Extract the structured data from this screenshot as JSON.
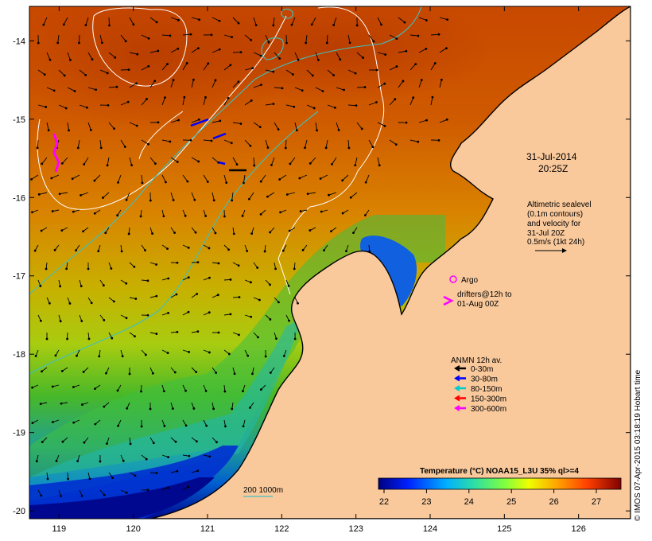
{
  "map": {
    "date": "31-Jul-2014",
    "time": "20:25Z",
    "lon_ticks": [
      "119",
      "120",
      "121",
      "122",
      "123",
      "124",
      "125",
      "126"
    ],
    "lat_ticks": [
      "-14",
      "-15",
      "-16",
      "-17",
      "-18",
      "-19",
      "-20"
    ]
  },
  "altimetry_note": {
    "line1": "Altimetric sealevel",
    "line2": "(0.1m contours)",
    "line3": "and velocity for",
    "line4": "31-Jul 20Z",
    "line5": "0.5m/s (1kt 24h)"
  },
  "argo": {
    "label": "Argo",
    "drifters_line1": "drifters@12h to",
    "drifters_line2": "01-Aug 00Z"
  },
  "anmn": {
    "title": "ANMN 12h av.",
    "items": [
      {
        "label": "0-30m",
        "color": "#000000"
      },
      {
        "label": "30-80m",
        "color": "#0000ff"
      },
      {
        "label": "80-150m",
        "color": "#00cccc"
      },
      {
        "label": "150-300m",
        "color": "#ff0000"
      },
      {
        "label": "300-600m",
        "color": "#ff00ff"
      }
    ]
  },
  "colorbar": {
    "title": "Temperature (°C) NOAA15_L3U 35% ql>=4",
    "ticks": [
      "22",
      "23",
      "24",
      "25",
      "26",
      "27"
    ]
  },
  "bathy_label": "200  1000m",
  "credit": "© IMOS 07-Apr-2015 03:18:19 Hobart time",
  "colors": {
    "land": "#f9c99c",
    "warm": "#c24a00",
    "contour": "#ffffff",
    "isobath": "#40c0c0",
    "argo": "#ff00ff"
  }
}
